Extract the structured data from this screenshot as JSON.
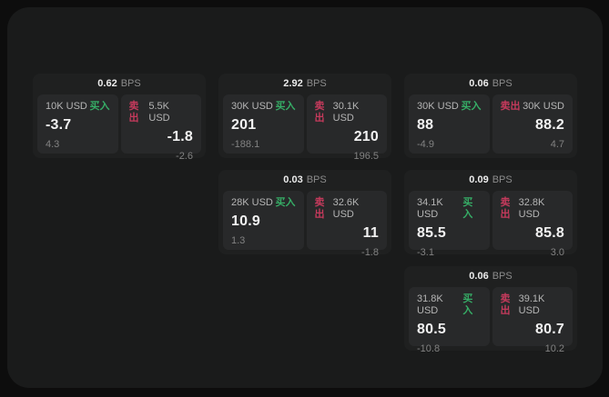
{
  "page": {
    "background": "#0d0d0d",
    "panel_background": "#1a1b1b",
    "card_background": "#1f2020",
    "tile_background": "#28292a"
  },
  "labels": {
    "buy": "买入",
    "sell": "卖出",
    "bps_unit": "BPS"
  },
  "colors": {
    "buy_accent": "#36ad66",
    "sell_accent": "#c53a5c"
  },
  "cards": [
    {
      "row": 0,
      "col": 0,
      "bps": "0.62",
      "buy": {
        "size": "10K USD",
        "price": "-3.7",
        "delta": "4.3"
      },
      "sell": {
        "size": "5.5K USD",
        "price": "-1.8",
        "delta": "-2.6"
      }
    },
    {
      "row": 0,
      "col": 1,
      "bps": "2.92",
      "buy": {
        "size": "30K USD",
        "price": "201",
        "delta": "-188.1"
      },
      "sell": {
        "size": "30.1K USD",
        "price": "210",
        "delta": "196.5"
      }
    },
    {
      "row": 0,
      "col": 2,
      "bps": "0.06",
      "buy": {
        "size": "30K USD",
        "price": "88",
        "delta": "-4.9"
      },
      "sell": {
        "size": "30K USD",
        "price": "88.2",
        "delta": "4.7"
      }
    },
    {
      "row": 1,
      "col": 1,
      "bps": "0.03",
      "buy": {
        "size": "28K USD",
        "price": "10.9",
        "delta": "1.3"
      },
      "sell": {
        "size": "32.6K USD",
        "price": "11",
        "delta": "-1.8"
      }
    },
    {
      "row": 1,
      "col": 2,
      "bps": "0.09",
      "buy": {
        "size": "34.1K USD",
        "price": "85.5",
        "delta": "-3.1"
      },
      "sell": {
        "size": "32.8K USD",
        "price": "85.8",
        "delta": "3.0"
      }
    },
    {
      "row": 2,
      "col": 2,
      "bps": "0.06",
      "buy": {
        "size": "31.8K USD",
        "price": "80.5",
        "delta": "-10.8"
      },
      "sell": {
        "size": "39.1K USD",
        "price": "80.7",
        "delta": "10.2"
      }
    }
  ]
}
